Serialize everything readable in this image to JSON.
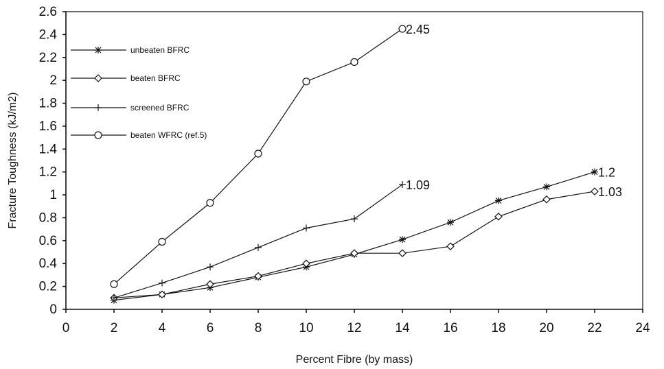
{
  "chart_data": {
    "type": "line",
    "title": "",
    "xlabel": "Percent Fibre (by mass)",
    "ylabel": "Fracture Toughness (kJ/m2)",
    "xlim": [
      0,
      24
    ],
    "ylim": [
      0,
      2.6
    ],
    "xticks": [
      "0",
      "2",
      "4",
      "6",
      "8",
      "10",
      "12",
      "14",
      "16",
      "18",
      "20",
      "22",
      "24"
    ],
    "yticks": [
      "0",
      "0.2",
      "0.4",
      "0.6",
      "0.8",
      "1",
      "1.2",
      "1.4",
      "1.6",
      "1.8",
      "2",
      "2.2",
      "2.4",
      "2.6"
    ],
    "grid": false,
    "legend_position": "top-left",
    "series": [
      {
        "name": "unbeaten BFRC",
        "marker": "asterisk",
        "x": [
          2,
          4,
          6,
          8,
          10,
          12,
          14,
          16,
          18,
          20,
          22
        ],
        "y": [
          0.08,
          0.13,
          0.19,
          0.28,
          0.37,
          0.48,
          0.61,
          0.76,
          0.95,
          1.07,
          1.2
        ],
        "end_label": "1.2"
      },
      {
        "name": "beaten BFRC",
        "marker": "diamond",
        "x": [
          2,
          4,
          6,
          8,
          10,
          12,
          14,
          16,
          18,
          20,
          22
        ],
        "y": [
          0.1,
          0.13,
          0.22,
          0.29,
          0.4,
          0.49,
          0.49,
          0.55,
          0.81,
          0.96,
          1.03
        ],
        "end_label": "1.03"
      },
      {
        "name": "screened BFRC",
        "marker": "plus",
        "x": [
          2,
          4,
          6,
          8,
          10,
          12,
          14
        ],
        "y": [
          0.1,
          0.23,
          0.37,
          0.54,
          0.71,
          0.79,
          1.09
        ],
        "end_label": "1.09"
      },
      {
        "name": "beaten WFRC (ref.5)",
        "marker": "circle",
        "x": [
          2,
          4,
          6,
          8,
          10,
          12,
          14
        ],
        "y": [
          0.22,
          0.59,
          0.93,
          1.36,
          1.99,
          2.16,
          2.45
        ],
        "end_label": "2.45"
      }
    ]
  }
}
